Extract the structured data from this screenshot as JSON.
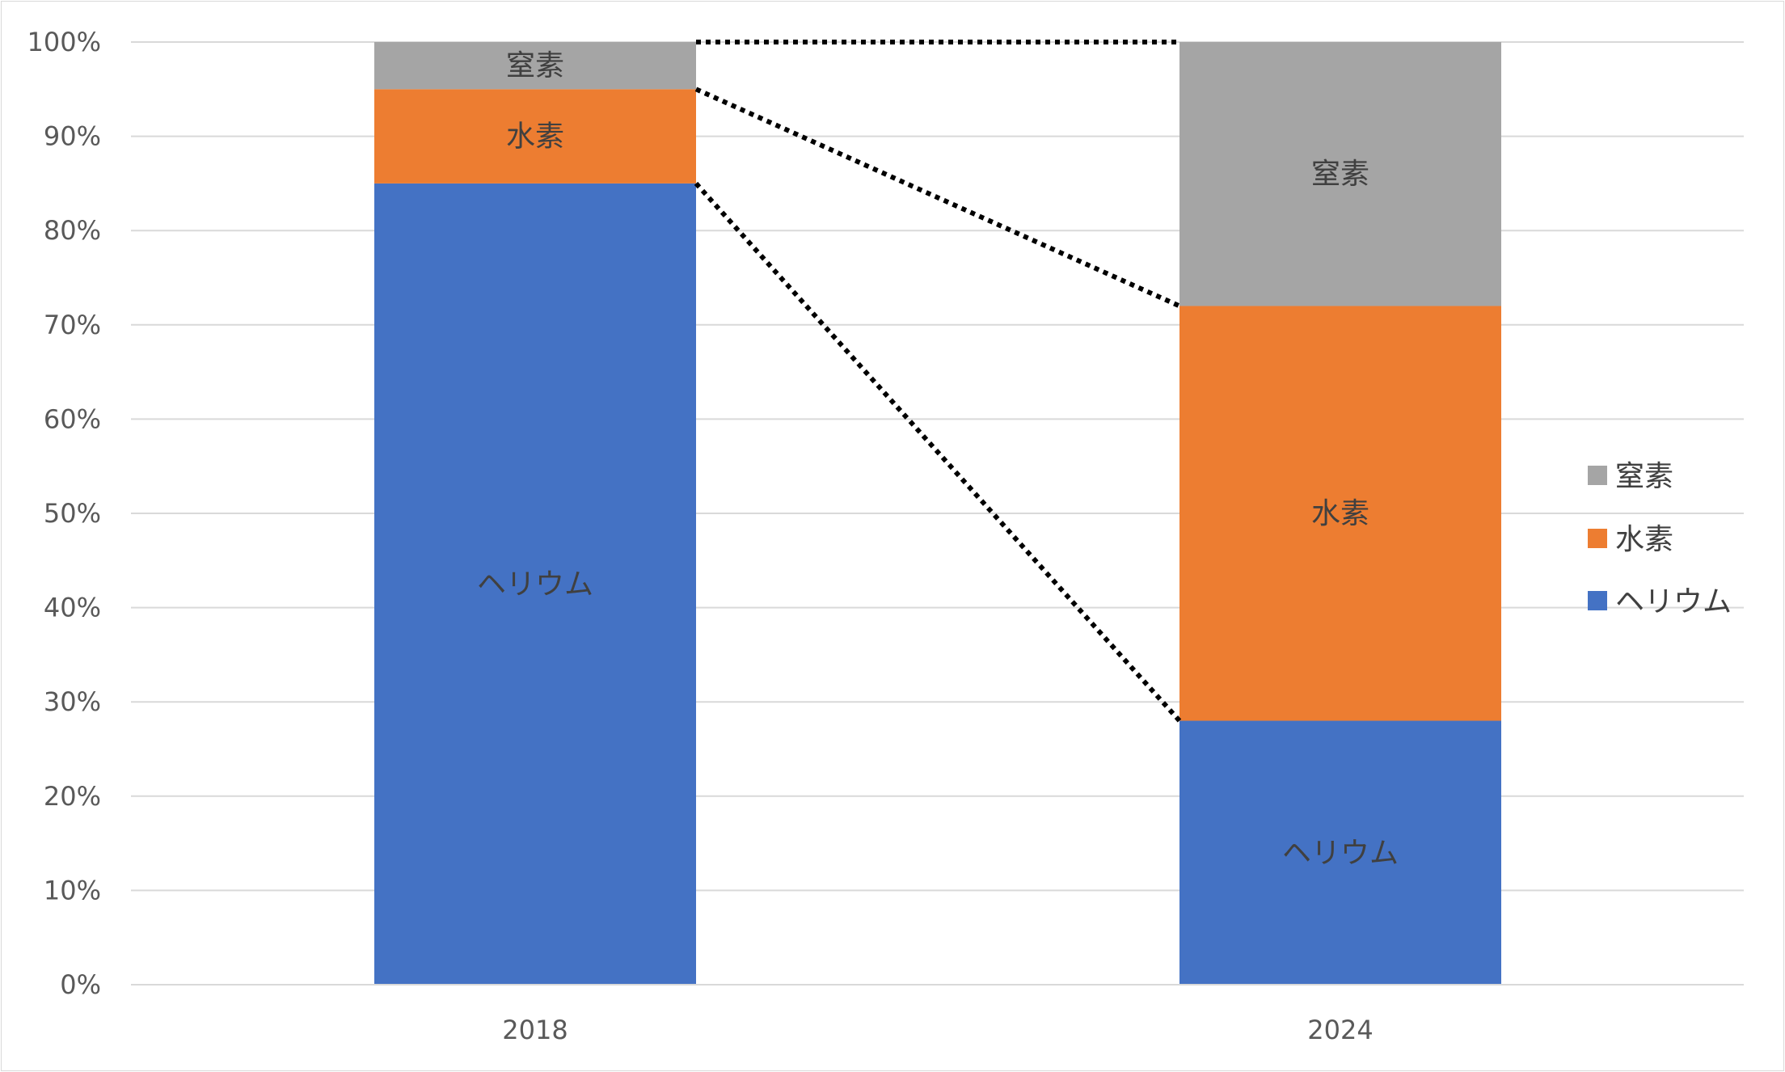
{
  "chart_data": {
    "type": "bar",
    "stacked": "percent",
    "categories": [
      "2018",
      "2024"
    ],
    "series": [
      {
        "name": "ヘリウム",
        "values": [
          85,
          28
        ],
        "color": "#4472c4"
      },
      {
        "name": "水素",
        "values": [
          10,
          44
        ],
        "color": "#ed7d31"
      },
      {
        "name": "窒素",
        "values": [
          5,
          28
        ],
        "color": "#a5a5a5"
      }
    ],
    "yticks": [
      "0%",
      "10%",
      "20%",
      "30%",
      "40%",
      "50%",
      "60%",
      "70%",
      "80%",
      "90%",
      "100%"
    ],
    "ylim": [
      0,
      100
    ],
    "grid": true,
    "legend": "right",
    "legend_order": [
      "窒素",
      "水素",
      "ヘリウム"
    ],
    "connector_lines": "dotted lines joining the tops of each segment between the two bars",
    "title": "",
    "xlabel": "",
    "ylabel": ""
  }
}
